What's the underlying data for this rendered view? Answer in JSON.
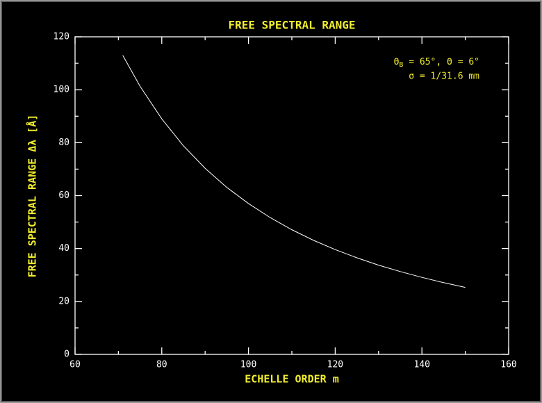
{
  "chart_data": {
    "type": "line",
    "title": "FREE SPECTRAL RANGE",
    "x_label": "ECHELLE ORDER m",
    "y_label": "FREE SPECTRAL RANGE Δλ [Å]",
    "annotation_lines": [
      [
        "Θ",
        "B",
        " = 65°, Θ = 6°"
      ],
      [
        "σ = 1/31.6 mm"
      ]
    ],
    "x": [
      71,
      75,
      80,
      85,
      90,
      95,
      100,
      105,
      110,
      115,
      120,
      125,
      130,
      135,
      140,
      145,
      150
    ],
    "series": [
      {
        "color": "#ffffff",
        "values": [
          113.0,
          101.3,
          89.0,
          78.8,
          70.3,
          63.1,
          57.0,
          51.7,
          47.1,
          43.1,
          39.6,
          36.5,
          33.7,
          31.3,
          29.1,
          27.1,
          25.3
        ]
      }
    ],
    "xlim": [
      60,
      160
    ],
    "xticks": [
      60,
      80,
      100,
      120,
      140,
      160
    ],
    "ylim": [
      0,
      120
    ],
    "yticks": [
      0,
      20,
      40,
      60,
      80,
      100,
      120
    ],
    "label_color": "#f2ee2e"
  }
}
